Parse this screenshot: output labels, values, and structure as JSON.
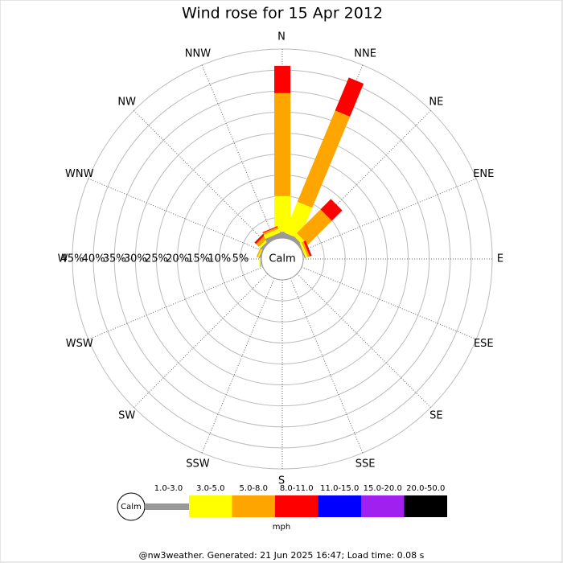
{
  "chart_data": {
    "type": "windrose",
    "title": "Wind rose for 15 Apr 2012",
    "center_label": "Calm",
    "categories": [
      "N",
      "NNE",
      "NE",
      "ENE",
      "E",
      "ESE",
      "SE",
      "SSE",
      "S",
      "SSW",
      "SW",
      "WSW",
      "W",
      "WNW",
      "NW",
      "NNW"
    ],
    "series": [
      {
        "name": "1.0-3.0",
        "color": "#999999",
        "values": [
          1.5,
          1,
          0.8,
          0.3,
          0,
          0,
          0,
          0,
          0,
          0,
          0,
          0,
          0.2,
          0.3,
          0.5,
          1
        ]
      },
      {
        "name": "3.0-5.0",
        "color": "#ffff00",
        "values": [
          8.5,
          8,
          1,
          0.5,
          0,
          0,
          0,
          0,
          0,
          0,
          0,
          0,
          0.3,
          0.3,
          0.5,
          1
        ]
      },
      {
        "name": "5.0-8.0",
        "color": "#ffa500",
        "values": [
          24.5,
          23.5,
          8,
          0.5,
          0,
          0,
          0,
          0,
          0,
          0,
          0,
          0,
          0,
          0.3,
          1,
          0.5
        ]
      },
      {
        "name": "8.0-11.0",
        "color": "#ff0000",
        "values": [
          6.5,
          8.5,
          3.5,
          0.5,
          0,
          0,
          0,
          0,
          0,
          0,
          0,
          0,
          0,
          0,
          0.5,
          0.2
        ]
      },
      {
        "name": "11.0-15.0",
        "color": "#0000ff",
        "values": [
          0,
          0,
          0,
          0,
          0,
          0,
          0,
          0,
          0,
          0,
          0,
          0,
          0,
          0,
          0,
          0
        ]
      },
      {
        "name": "15.0-20.0",
        "color": "#a020f0",
        "values": [
          0,
          0,
          0,
          0,
          0,
          0,
          0,
          0,
          0,
          0,
          0,
          0,
          0,
          0,
          0,
          0
        ]
      },
      {
        "name": "20.0-50.0",
        "color": "#000000",
        "values": [
          0,
          0,
          0,
          0,
          0,
          0,
          0,
          0,
          0,
          0,
          0,
          0,
          0,
          0,
          0,
          0
        ]
      }
    ],
    "rlim": [
      0,
      45
    ],
    "rticks": [
      {
        "value": 5,
        "label": "5%"
      },
      {
        "value": 10,
        "label": "10%"
      },
      {
        "value": 15,
        "label": "15%"
      },
      {
        "value": 20,
        "label": "20%"
      },
      {
        "value": 25,
        "label": "25%"
      },
      {
        "value": 30,
        "label": "30%"
      },
      {
        "value": 35,
        "label": "35%"
      },
      {
        "value": 40,
        "label": "40%"
      },
      {
        "value": 45,
        "label": "45%"
      }
    ],
    "legend_unit": "mph",
    "footer": "@nw3weather. Generated: 21 Jun 2025 16:47; Load time: 0.08 s"
  }
}
